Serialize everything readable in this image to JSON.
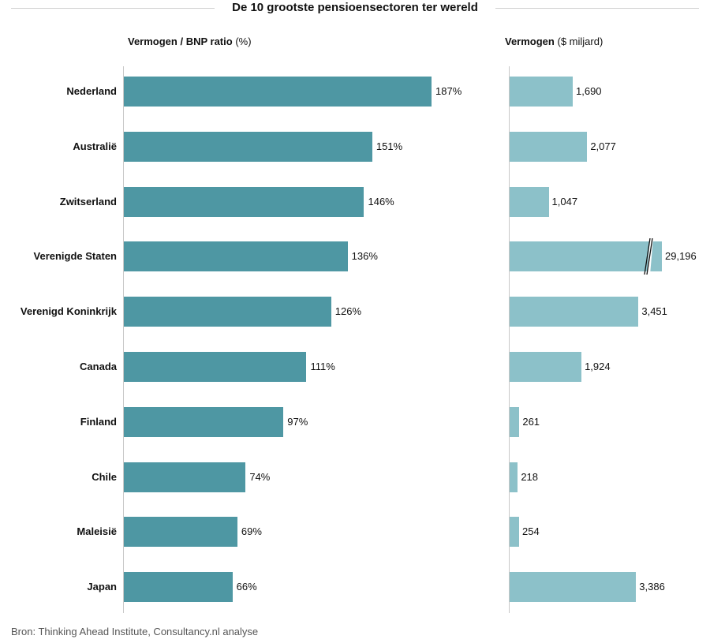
{
  "chart_data": {
    "type": "bar",
    "title": "De 10 grootste pensioensectoren ter wereld",
    "categories": [
      "Nederland",
      "Australië",
      "Zwitserland",
      "Verenigde Staten",
      "Verenigd Koninkrijk",
      "Canada",
      "Finland",
      "Chile",
      "Maleisië",
      "Japan"
    ],
    "series": [
      {
        "name": "Vermogen / BNP ratio (%)",
        "name_bold": "Vermogen / BNP ratio",
        "name_unit": "(%)",
        "values": [
          187,
          151,
          146,
          136,
          126,
          111,
          97,
          74,
          69,
          66
        ],
        "labels": [
          "187%",
          "151%",
          "146%",
          "136%",
          "126%",
          "111%",
          "97%",
          "74%",
          "69%",
          "66%"
        ],
        "color": "#4e97a3"
      },
      {
        "name": "Vermogen ($ miljard)",
        "name_bold": "Vermogen",
        "name_unit": "($ miljard)",
        "values": [
          1690,
          2077,
          1047,
          29196,
          3451,
          1924,
          261,
          218,
          254,
          3386
        ],
        "labels": [
          "1,690",
          "2,077",
          "1,047",
          "29,196",
          "3,451",
          "1,924",
          "261",
          "218",
          "254",
          "3,386"
        ],
        "color": "#8cc1c9",
        "axis_break_category": "Verenigde Staten"
      }
    ],
    "orientation": "horizontal",
    "grid": false,
    "legend": "none"
  },
  "source": "Bron: Thinking Ahead Institute, Consultancy.nl analyse"
}
